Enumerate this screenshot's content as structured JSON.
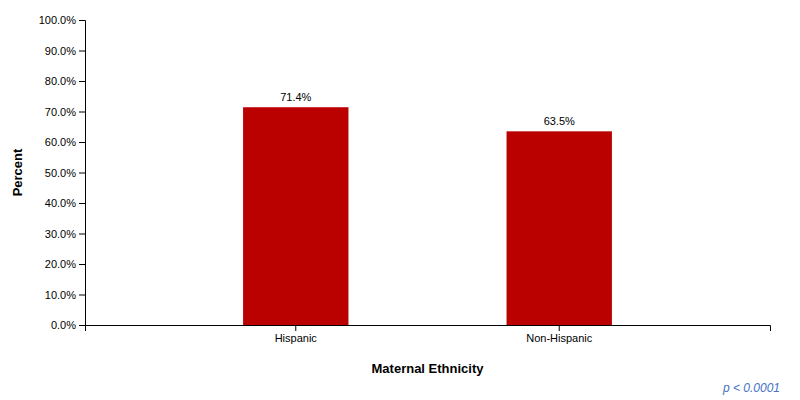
{
  "chart_data": {
    "type": "bar",
    "categories": [
      "Hispanic",
      "Non-Hispanic"
    ],
    "values": [
      71.4,
      63.5
    ],
    "value_labels": [
      "71.4%",
      "63.5%"
    ],
    "data_labels": true,
    "color": "#bb0000",
    "xlabel": "Maternal Ethnicity",
    "ylabel": "Percent",
    "annotation": "p < 0.0001",
    "ylim": [
      0,
      100
    ],
    "yticks": [
      {
        "value": 0,
        "label": "0.0%"
      },
      {
        "value": 10,
        "label": "10.0%"
      },
      {
        "value": 20,
        "label": "20.0%"
      },
      {
        "value": 30,
        "label": "30.0%"
      },
      {
        "value": 40,
        "label": "40.0%"
      },
      {
        "value": 50,
        "label": "50.0%"
      },
      {
        "value": 60,
        "label": "60.0%"
      },
      {
        "value": 70,
        "label": "70.0%"
      },
      {
        "value": 80,
        "label": "80.0%"
      },
      {
        "value": 90,
        "label": "90.0%"
      },
      {
        "value": 100,
        "label": "100.0%"
      }
    ],
    "grid": false
  }
}
